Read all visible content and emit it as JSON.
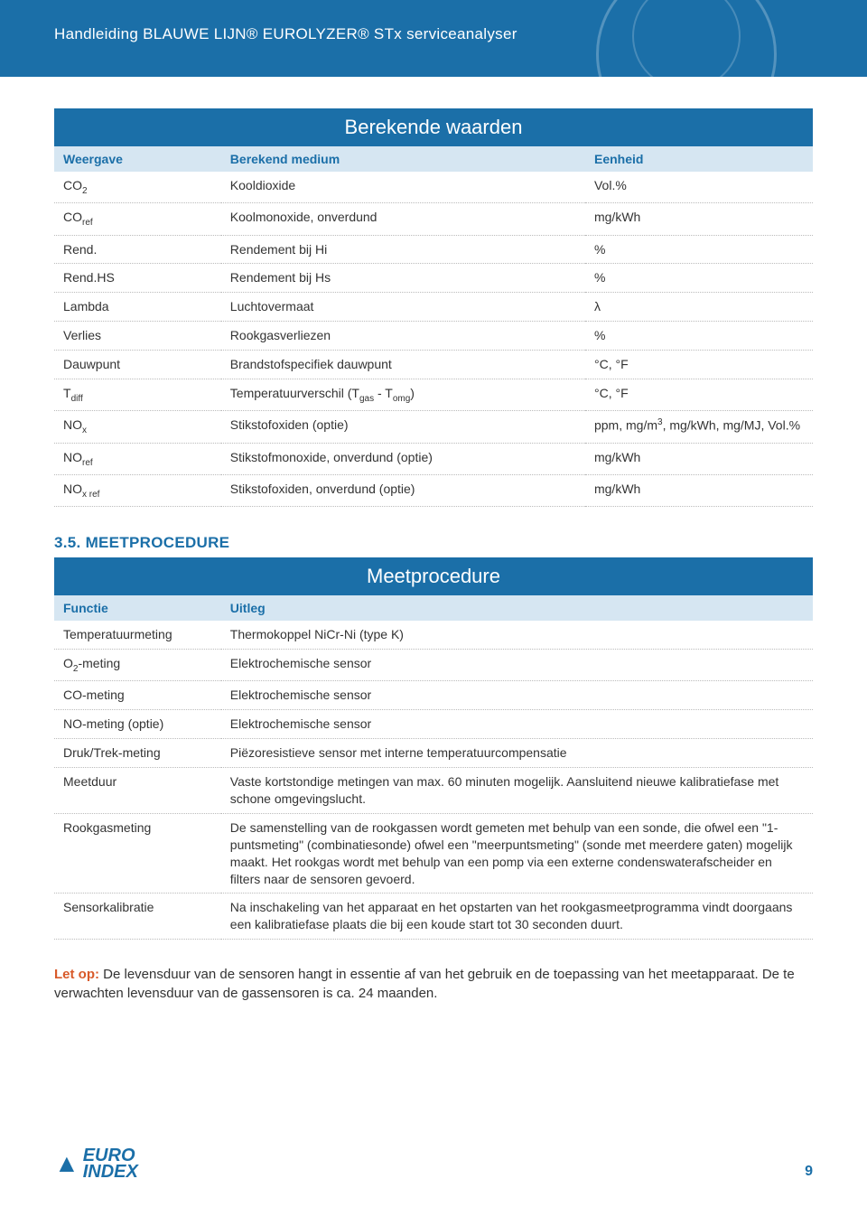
{
  "header": {
    "title": "Handleiding BLAUWE LIJN® EUROLYZER® STx serviceanalyser"
  },
  "table1": {
    "title": "Berekende waarden",
    "headers": [
      "Weergave",
      "Berekend medium",
      "Eenheid"
    ],
    "rows": [
      {
        "c0": "CO₂",
        "c1": "Kooldioxide",
        "c2": "Vol.%"
      },
      {
        "c0": "COref",
        "c1": "Koolmonoxide, onverdund",
        "c2": "mg/kWh"
      },
      {
        "c0": "Rend.",
        "c1": "Rendement bij Hi",
        "c2": "%"
      },
      {
        "c0": "Rend.HS",
        "c1": "Rendement bij Hs",
        "c2": "%"
      },
      {
        "c0": "Lambda",
        "c1": "Luchtovermaat",
        "c2": "λ"
      },
      {
        "c0": "Verlies",
        "c1": "Rookgasverliezen",
        "c2": "%"
      },
      {
        "c0": "Dauwpunt",
        "c1": "Brandstofspecifiek dauwpunt",
        "c2": "°C, °F"
      },
      {
        "c0": "Tdiff",
        "c1": "Temperatuurverschil (Tgas - Tomg)",
        "c2": "°C, °F"
      },
      {
        "c0": "NOx",
        "c1": "Stikstofoxiden (optie)",
        "c2": "ppm, mg/m³, mg/kWh, mg/MJ, Vol.%"
      },
      {
        "c0": "NOref",
        "c1": "Stikstofmonoxide, onverdund (optie)",
        "c2": "mg/kWh"
      },
      {
        "c0": "NOx ref",
        "c1": "Stikstofoxiden, onverdund (optie)",
        "c2": "mg/kWh"
      }
    ]
  },
  "section_heading": "3.5. MEETPROCEDURE",
  "table2": {
    "title": "Meetprocedure",
    "headers": [
      "Functie",
      "Uitleg"
    ],
    "rows": [
      {
        "c0": "Temperatuurmeting",
        "c1": "Thermokoppel NiCr-Ni (type K)"
      },
      {
        "c0": "O₂-meting",
        "c1": "Elektrochemische sensor"
      },
      {
        "c0": "CO-meting",
        "c1": "Elektrochemische sensor"
      },
      {
        "c0": "NO-meting (optie)",
        "c1": "Elektrochemische sensor"
      },
      {
        "c0": "Druk/Trek-meting",
        "c1": "Piëzoresistieve sensor met interne temperatuurcompensatie"
      },
      {
        "c0": "Meetduur",
        "c1": "Vaste kortstondige metingen van max. 60 minuten mogelijk. Aansluitend nieuwe kalibratiefase met schone omgevingslucht."
      },
      {
        "c0": "Rookgasmeting",
        "c1": "De samenstelling van de rookgassen wordt gemeten met behulp van een sonde, die ofwel een \"1-puntsmeting\" (combinatiesonde) ofwel een \"meerpuntsmeting\" (sonde met meerdere gaten) mogelijk maakt. Het rookgas wordt met behulp van een pomp via een externe condenswaterafscheider en filters naar de sensoren gevoerd."
      },
      {
        "c0": "Sensorkalibratie",
        "c1": "Na inschakeling van het apparaat en het opstarten van het rookgasmeetprogramma vindt doorgaans een kalibratiefase plaats die bij een koude start tot 30 seconden duurt."
      }
    ]
  },
  "note": {
    "label": "Let op:",
    "text": " De levensduur van de sensoren hangt in essentie af van het gebruik en de toepassing van het meetapparaat. De te verwachten levensduur van de gassensoren is ca. 24 maanden."
  },
  "footer": {
    "logo_top": "EURO",
    "logo_bottom": "INDEX",
    "page": "9"
  },
  "colors": {
    "primary": "#1b6fa8",
    "header_band": "#1b6fa8",
    "row_header_bg": "#d6e6f2",
    "note_accent": "#d85a2a"
  }
}
